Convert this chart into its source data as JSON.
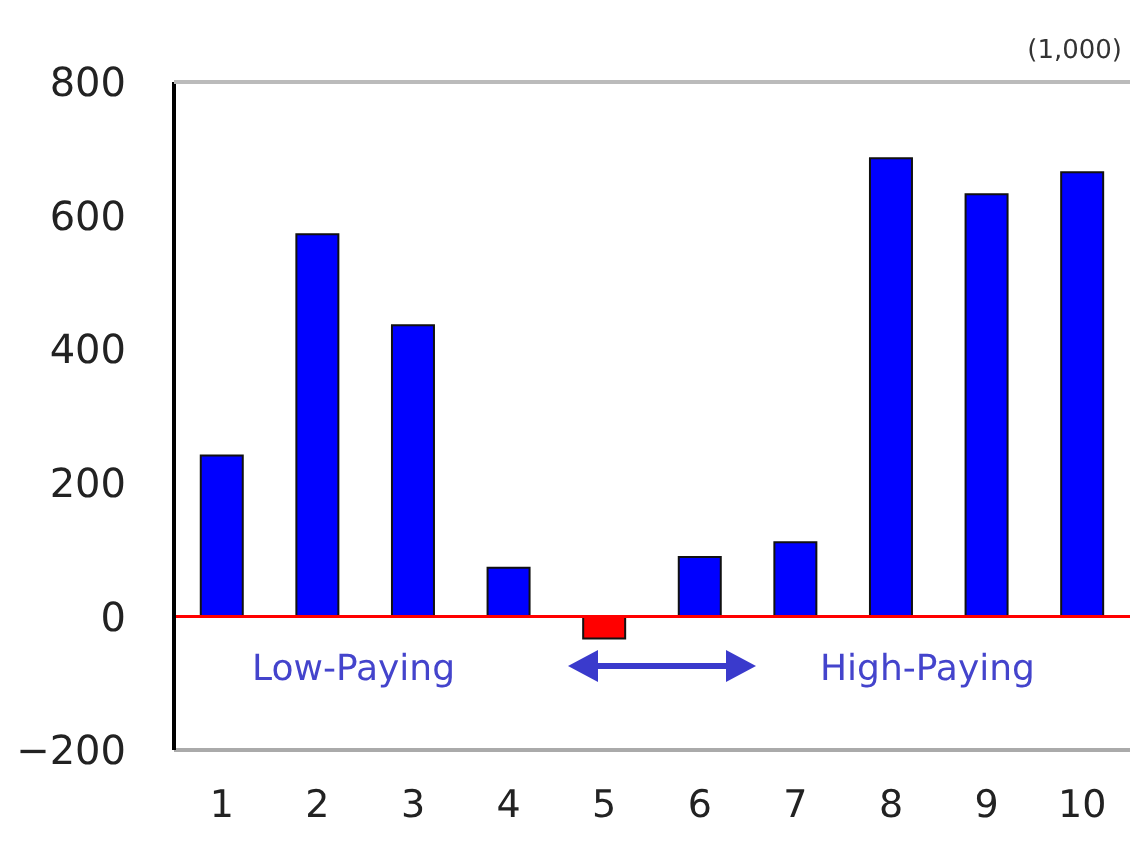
{
  "chart_data": {
    "type": "bar",
    "categories": [
      "1",
      "2",
      "3",
      "4",
      "5",
      "6",
      "7",
      "8",
      "9",
      "10"
    ],
    "values": [
      241,
      572,
      436,
      73,
      -33,
      89,
      111,
      686,
      632,
      665
    ],
    "colors": [
      "#0000ff",
      "#0000ff",
      "#0000ff",
      "#0000ff",
      "#ff0000",
      "#0000ff",
      "#0000ff",
      "#0000ff",
      "#0000ff",
      "#0000ff"
    ],
    "ylim": [
      -200,
      800
    ],
    "yticks": [
      -200,
      0,
      200,
      400,
      600,
      800
    ],
    "grid": false,
    "ref_lines": [
      {
        "axis": "y",
        "value": 0,
        "color": "#ff0000"
      }
    ],
    "annotations": [
      "(1,000)",
      "Low-Paying",
      "High-Paying"
    ]
  }
}
